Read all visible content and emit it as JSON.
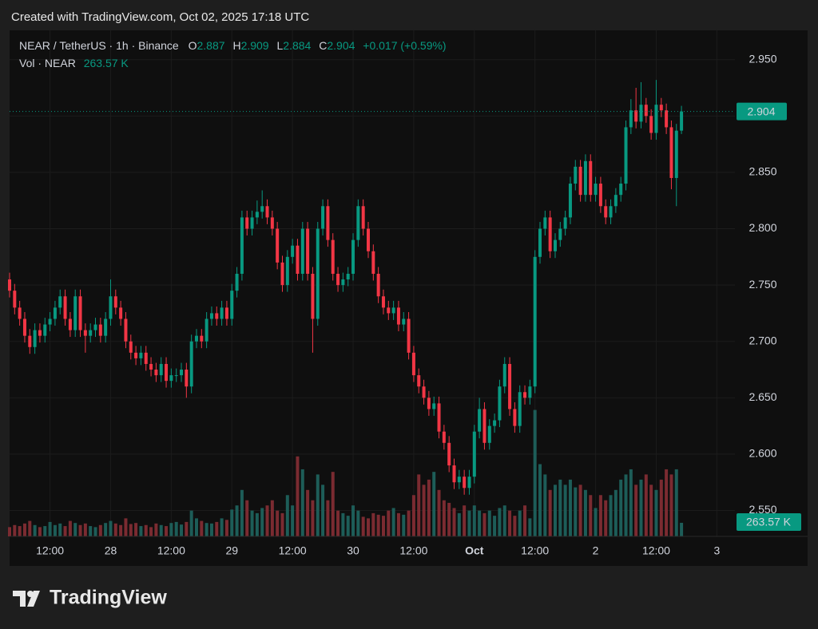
{
  "created": "Created with TradingView.com, Oct 02, 2025 17:18 UTC",
  "logo": "TradingView",
  "chart_data": {
    "type": "candlestick",
    "symbol": "NEAR / TetherUS · 1h · Binance",
    "ohlc_labels": [
      "O",
      "H",
      "L",
      "C"
    ],
    "change": "+0.017 (+0.59%)",
    "volume_title": "Vol · NEAR",
    "volume_label": "263.57 K",
    "up_color": "#089981",
    "down_color": "#f23645",
    "up_volume_color": "#1d5d58",
    "down_volume_color": "#7b2b31",
    "open": [
      2.755,
      2.745,
      2.73,
      2.72,
      2.705,
      2.695,
      2.71,
      2.705,
      2.715,
      2.72,
      2.73,
      2.74,
      2.72,
      2.71,
      2.74,
      2.71,
      2.705,
      2.71,
      2.715,
      2.705,
      2.72,
      2.74,
      2.73,
      2.72,
      2.7,
      2.69,
      2.685,
      2.69,
      2.68,
      2.675,
      2.67,
      2.68,
      2.665,
      2.67,
      2.67,
      2.675,
      2.66,
      2.7,
      2.705,
      2.7,
      2.72,
      2.725,
      2.72,
      2.73,
      2.72,
      2.745,
      2.76,
      2.81,
      2.8,
      2.81,
      2.815,
      2.82,
      2.81,
      2.8,
      2.77,
      2.75,
      2.775,
      2.785,
      2.76,
      2.8,
      2.76,
      2.72,
      2.8,
      2.82,
      2.79,
      2.76,
      2.75,
      2.755,
      2.76,
      2.79,
      2.82,
      2.8,
      2.78,
      2.76,
      2.74,
      2.73,
      2.725,
      2.73,
      2.715,
      2.72,
      2.69,
      2.67,
      2.66,
      2.65,
      2.64,
      2.645,
      2.62,
      2.61,
      2.59,
      2.575,
      2.58,
      2.57,
      2.58,
      2.62,
      2.64,
      2.61,
      2.625,
      2.63,
      2.66,
      2.68,
      2.64,
      2.625,
      2.655,
      2.65,
      2.66,
      2.775,
      2.8,
      2.81,
      2.78,
      2.79,
      2.8,
      2.81,
      2.84,
      2.855,
      2.83,
      2.86,
      2.83,
      2.84,
      2.82,
      2.81,
      2.82,
      2.83,
      2.84,
      2.89,
      2.905,
      2.895,
      2.91,
      2.9,
      2.885,
      2.91,
      2.905,
      2.89,
      2.845,
      2.887
    ],
    "high": [
      2.761,
      2.751,
      2.736,
      2.726,
      2.711,
      2.716,
      2.716,
      2.721,
      2.726,
      2.736,
      2.746,
      2.746,
      2.726,
      2.746,
      2.746,
      2.716,
      2.716,
      2.721,
      2.721,
      2.726,
      2.755,
      2.746,
      2.736,
      2.726,
      2.706,
      2.696,
      2.696,
      2.696,
      2.686,
      2.681,
      2.686,
      2.686,
      2.676,
      2.676,
      2.681,
      2.681,
      2.706,
      2.711,
      2.711,
      2.726,
      2.731,
      2.731,
      2.736,
      2.736,
      2.751,
      2.766,
      2.816,
      2.816,
      2.816,
      2.825,
      2.834,
      2.826,
      2.816,
      2.806,
      2.776,
      2.781,
      2.791,
      2.791,
      2.806,
      2.806,
      2.766,
      2.806,
      2.826,
      2.826,
      2.796,
      2.766,
      2.761,
      2.766,
      2.796,
      2.826,
      2.826,
      2.806,
      2.786,
      2.766,
      2.746,
      2.736,
      2.736,
      2.736,
      2.726,
      2.726,
      2.696,
      2.676,
      2.666,
      2.656,
      2.651,
      2.651,
      2.626,
      2.616,
      2.596,
      2.586,
      2.586,
      2.586,
      2.626,
      2.65,
      2.646,
      2.631,
      2.636,
      2.666,
      2.686,
      2.686,
      2.646,
      2.661,
      2.661,
      2.666,
      2.781,
      2.806,
      2.816,
      2.816,
      2.796,
      2.806,
      2.816,
      2.846,
      2.861,
      2.861,
      2.866,
      2.866,
      2.846,
      2.846,
      2.826,
      2.826,
      2.836,
      2.846,
      2.896,
      2.915,
      2.925,
      2.93,
      2.916,
      2.906,
      2.932,
      2.916,
      2.911,
      2.896,
      2.893,
      2.909
    ],
    "low": [
      2.739,
      2.724,
      2.714,
      2.699,
      2.689,
      2.689,
      2.699,
      2.699,
      2.709,
      2.714,
      2.724,
      2.714,
      2.704,
      2.704,
      2.704,
      2.69,
      2.699,
      2.704,
      2.699,
      2.699,
      2.714,
      2.724,
      2.714,
      2.694,
      2.684,
      2.679,
      2.679,
      2.674,
      2.669,
      2.664,
      2.664,
      2.659,
      2.659,
      2.664,
      2.664,
      2.65,
      2.654,
      2.694,
      2.694,
      2.694,
      2.714,
      2.714,
      2.714,
      2.714,
      2.714,
      2.739,
      2.754,
      2.794,
      2.794,
      2.804,
      2.809,
      2.804,
      2.794,
      2.764,
      2.744,
      2.744,
      2.769,
      2.754,
      2.754,
      2.754,
      2.69,
      2.714,
      2.794,
      2.784,
      2.754,
      2.744,
      2.744,
      2.749,
      2.754,
      2.784,
      2.794,
      2.774,
      2.754,
      2.734,
      2.724,
      2.719,
      2.719,
      2.709,
      2.709,
      2.684,
      2.664,
      2.654,
      2.644,
      2.634,
      2.634,
      2.614,
      2.604,
      2.584,
      2.569,
      2.569,
      2.564,
      2.564,
      2.574,
      2.614,
      2.604,
      2.604,
      2.619,
      2.624,
      2.654,
      2.634,
      2.619,
      2.619,
      2.644,
      2.644,
      2.654,
      2.769,
      2.794,
      2.774,
      2.774,
      2.784,
      2.794,
      2.804,
      2.834,
      2.824,
      2.824,
      2.824,
      2.824,
      2.814,
      2.804,
      2.804,
      2.814,
      2.824,
      2.834,
      2.884,
      2.889,
      2.889,
      2.894,
      2.879,
      2.879,
      2.899,
      2.884,
      2.835,
      2.82,
      2.884
    ],
    "close": [
      2.745,
      2.73,
      2.72,
      2.705,
      2.695,
      2.71,
      2.705,
      2.715,
      2.72,
      2.73,
      2.74,
      2.72,
      2.71,
      2.74,
      2.71,
      2.705,
      2.71,
      2.715,
      2.705,
      2.72,
      2.74,
      2.73,
      2.72,
      2.7,
      2.69,
      2.685,
      2.69,
      2.68,
      2.675,
      2.67,
      2.68,
      2.665,
      2.67,
      2.67,
      2.675,
      2.66,
      2.7,
      2.705,
      2.7,
      2.72,
      2.725,
      2.72,
      2.73,
      2.72,
      2.745,
      2.76,
      2.81,
      2.8,
      2.81,
      2.815,
      2.82,
      2.81,
      2.8,
      2.77,
      2.75,
      2.775,
      2.785,
      2.76,
      2.8,
      2.76,
      2.72,
      2.8,
      2.82,
      2.79,
      2.76,
      2.75,
      2.755,
      2.76,
      2.79,
      2.82,
      2.8,
      2.78,
      2.76,
      2.74,
      2.73,
      2.725,
      2.73,
      2.715,
      2.72,
      2.69,
      2.67,
      2.66,
      2.65,
      2.64,
      2.645,
      2.62,
      2.61,
      2.59,
      2.575,
      2.58,
      2.57,
      2.58,
      2.62,
      2.64,
      2.61,
      2.625,
      2.63,
      2.66,
      2.68,
      2.64,
      2.625,
      2.655,
      2.65,
      2.66,
      2.775,
      2.8,
      2.81,
      2.78,
      2.79,
      2.8,
      2.81,
      2.84,
      2.855,
      2.83,
      2.86,
      2.83,
      2.84,
      2.82,
      2.81,
      2.82,
      2.83,
      2.84,
      2.89,
      2.905,
      2.895,
      2.91,
      2.9,
      2.885,
      2.91,
      2.905,
      2.89,
      2.845,
      2.887,
      2.904
    ],
    "volume": [
      180000,
      220000,
      200000,
      250000,
      300000,
      220000,
      180000,
      200000,
      280000,
      220000,
      250000,
      200000,
      300000,
      260000,
      220000,
      250000,
      200000,
      180000,
      220000,
      260000,
      300000,
      250000,
      220000,
      350000,
      240000,
      260000,
      200000,
      220000,
      180000,
      250000,
      220000,
      200000,
      260000,
      280000,
      230000,
      280000,
      500000,
      350000,
      300000,
      260000,
      250000,
      280000,
      350000,
      320000,
      520000,
      600000,
      900000,
      700000,
      500000,
      450000,
      550000,
      600000,
      700000,
      500000,
      450000,
      800000,
      600000,
      1550000,
      1300000,
      900000,
      700000,
      1200000,
      1000000,
      700000,
      1250000,
      500000,
      450000,
      400000,
      600000,
      500000,
      380000,
      350000,
      450000,
      420000,
      400000,
      500000,
      550000,
      450000,
      420000,
      500000,
      800000,
      1200000,
      1000000,
      1100000,
      1250000,
      900000,
      700000,
      650000,
      550000,
      450000,
      600000,
      500000,
      600000,
      500000,
      450000,
      500000,
      400000,
      550000,
      600000,
      500000,
      400000,
      500000,
      600000,
      350000,
      2450000,
      1400000,
      1200000,
      900000,
      1000000,
      1100000,
      1000000,
      1100000,
      950000,
      1000000,
      900000,
      800000,
      550000,
      800000,
      700000,
      800000,
      900000,
      1100000,
      1200000,
      1300000,
      1000000,
      1100000,
      1200000,
      1000000,
      900000,
      1100000,
      1300000,
      1200000,
      1300000,
      263570
    ],
    "xlim": [
      0,
      142
    ],
    "ylim": [
      2.527,
      2.976
    ],
    "volume_lim": [
      0,
      3000000
    ],
    "yticks": [
      {
        "value": 2.55,
        "label": "2.550"
      },
      {
        "value": 2.6,
        "label": "2.600"
      },
      {
        "value": 2.65,
        "label": "2.650"
      },
      {
        "value": 2.7,
        "label": "2.700"
      },
      {
        "value": 2.75,
        "label": "2.750"
      },
      {
        "value": 2.8,
        "label": "2.800"
      },
      {
        "value": 2.85,
        "label": "2.850"
      },
      {
        "value": 2.9,
        "label": "2.900"
      },
      {
        "value": 2.95,
        "label": "2.950"
      }
    ],
    "xticks": [
      {
        "value": 8,
        "label": "12:00"
      },
      {
        "value": 20,
        "label": "28"
      },
      {
        "value": 32,
        "label": "12:00"
      },
      {
        "value": 44,
        "label": "29"
      },
      {
        "value": 56,
        "label": "12:00"
      },
      {
        "value": 68,
        "label": "30"
      },
      {
        "value": 80,
        "label": "12:00"
      },
      {
        "value": 92,
        "label": "Oct"
      },
      {
        "value": 104,
        "label": "12:00"
      },
      {
        "value": 116,
        "label": "2"
      },
      {
        "value": 128,
        "label": "12:00"
      },
      {
        "value": 140,
        "label": "3"
      }
    ],
    "grid": true
  }
}
